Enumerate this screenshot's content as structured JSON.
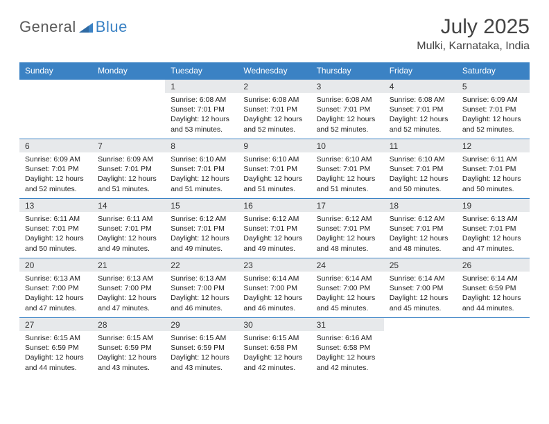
{
  "brand": {
    "word1": "General",
    "word2": "Blue"
  },
  "title": "July 2025",
  "location": "Mulki, Karnataka, India",
  "colors": {
    "header_bg": "#3b82c4",
    "header_text": "#ffffff",
    "daynum_bg": "#e7e9eb",
    "rule": "#3b82c4",
    "logo_gray": "#5a5a5a",
    "logo_blue": "#3b82c4"
  },
  "fonts": {
    "month_title_size": 30,
    "location_size": 16,
    "weekday_size": 12,
    "daynum_size": 12,
    "body_size": 10.5
  },
  "weekdays": [
    "Sunday",
    "Monday",
    "Tuesday",
    "Wednesday",
    "Thursday",
    "Friday",
    "Saturday"
  ],
  "weeks": [
    [
      {
        "empty": true
      },
      {
        "empty": true
      },
      {
        "n": "1",
        "sunrise": "Sunrise: 6:08 AM",
        "sunset": "Sunset: 7:01 PM",
        "daylight": "Daylight: 12 hours and 53 minutes."
      },
      {
        "n": "2",
        "sunrise": "Sunrise: 6:08 AM",
        "sunset": "Sunset: 7:01 PM",
        "daylight": "Daylight: 12 hours and 52 minutes."
      },
      {
        "n": "3",
        "sunrise": "Sunrise: 6:08 AM",
        "sunset": "Sunset: 7:01 PM",
        "daylight": "Daylight: 12 hours and 52 minutes."
      },
      {
        "n": "4",
        "sunrise": "Sunrise: 6:08 AM",
        "sunset": "Sunset: 7:01 PM",
        "daylight": "Daylight: 12 hours and 52 minutes."
      },
      {
        "n": "5",
        "sunrise": "Sunrise: 6:09 AM",
        "sunset": "Sunset: 7:01 PM",
        "daylight": "Daylight: 12 hours and 52 minutes."
      }
    ],
    [
      {
        "n": "6",
        "sunrise": "Sunrise: 6:09 AM",
        "sunset": "Sunset: 7:01 PM",
        "daylight": "Daylight: 12 hours and 52 minutes."
      },
      {
        "n": "7",
        "sunrise": "Sunrise: 6:09 AM",
        "sunset": "Sunset: 7:01 PM",
        "daylight": "Daylight: 12 hours and 51 minutes."
      },
      {
        "n": "8",
        "sunrise": "Sunrise: 6:10 AM",
        "sunset": "Sunset: 7:01 PM",
        "daylight": "Daylight: 12 hours and 51 minutes."
      },
      {
        "n": "9",
        "sunrise": "Sunrise: 6:10 AM",
        "sunset": "Sunset: 7:01 PM",
        "daylight": "Daylight: 12 hours and 51 minutes."
      },
      {
        "n": "10",
        "sunrise": "Sunrise: 6:10 AM",
        "sunset": "Sunset: 7:01 PM",
        "daylight": "Daylight: 12 hours and 51 minutes."
      },
      {
        "n": "11",
        "sunrise": "Sunrise: 6:10 AM",
        "sunset": "Sunset: 7:01 PM",
        "daylight": "Daylight: 12 hours and 50 minutes."
      },
      {
        "n": "12",
        "sunrise": "Sunrise: 6:11 AM",
        "sunset": "Sunset: 7:01 PM",
        "daylight": "Daylight: 12 hours and 50 minutes."
      }
    ],
    [
      {
        "n": "13",
        "sunrise": "Sunrise: 6:11 AM",
        "sunset": "Sunset: 7:01 PM",
        "daylight": "Daylight: 12 hours and 50 minutes."
      },
      {
        "n": "14",
        "sunrise": "Sunrise: 6:11 AM",
        "sunset": "Sunset: 7:01 PM",
        "daylight": "Daylight: 12 hours and 49 minutes."
      },
      {
        "n": "15",
        "sunrise": "Sunrise: 6:12 AM",
        "sunset": "Sunset: 7:01 PM",
        "daylight": "Daylight: 12 hours and 49 minutes."
      },
      {
        "n": "16",
        "sunrise": "Sunrise: 6:12 AM",
        "sunset": "Sunset: 7:01 PM",
        "daylight": "Daylight: 12 hours and 49 minutes."
      },
      {
        "n": "17",
        "sunrise": "Sunrise: 6:12 AM",
        "sunset": "Sunset: 7:01 PM",
        "daylight": "Daylight: 12 hours and 48 minutes."
      },
      {
        "n": "18",
        "sunrise": "Sunrise: 6:12 AM",
        "sunset": "Sunset: 7:01 PM",
        "daylight": "Daylight: 12 hours and 48 minutes."
      },
      {
        "n": "19",
        "sunrise": "Sunrise: 6:13 AM",
        "sunset": "Sunset: 7:01 PM",
        "daylight": "Daylight: 12 hours and 47 minutes."
      }
    ],
    [
      {
        "n": "20",
        "sunrise": "Sunrise: 6:13 AM",
        "sunset": "Sunset: 7:00 PM",
        "daylight": "Daylight: 12 hours and 47 minutes."
      },
      {
        "n": "21",
        "sunrise": "Sunrise: 6:13 AM",
        "sunset": "Sunset: 7:00 PM",
        "daylight": "Daylight: 12 hours and 47 minutes."
      },
      {
        "n": "22",
        "sunrise": "Sunrise: 6:13 AM",
        "sunset": "Sunset: 7:00 PM",
        "daylight": "Daylight: 12 hours and 46 minutes."
      },
      {
        "n": "23",
        "sunrise": "Sunrise: 6:14 AM",
        "sunset": "Sunset: 7:00 PM",
        "daylight": "Daylight: 12 hours and 46 minutes."
      },
      {
        "n": "24",
        "sunrise": "Sunrise: 6:14 AM",
        "sunset": "Sunset: 7:00 PM",
        "daylight": "Daylight: 12 hours and 45 minutes."
      },
      {
        "n": "25",
        "sunrise": "Sunrise: 6:14 AM",
        "sunset": "Sunset: 7:00 PM",
        "daylight": "Daylight: 12 hours and 45 minutes."
      },
      {
        "n": "26",
        "sunrise": "Sunrise: 6:14 AM",
        "sunset": "Sunset: 6:59 PM",
        "daylight": "Daylight: 12 hours and 44 minutes."
      }
    ],
    [
      {
        "n": "27",
        "sunrise": "Sunrise: 6:15 AM",
        "sunset": "Sunset: 6:59 PM",
        "daylight": "Daylight: 12 hours and 44 minutes."
      },
      {
        "n": "28",
        "sunrise": "Sunrise: 6:15 AM",
        "sunset": "Sunset: 6:59 PM",
        "daylight": "Daylight: 12 hours and 43 minutes."
      },
      {
        "n": "29",
        "sunrise": "Sunrise: 6:15 AM",
        "sunset": "Sunset: 6:59 PM",
        "daylight": "Daylight: 12 hours and 43 minutes."
      },
      {
        "n": "30",
        "sunrise": "Sunrise: 6:15 AM",
        "sunset": "Sunset: 6:58 PM",
        "daylight": "Daylight: 12 hours and 42 minutes."
      },
      {
        "n": "31",
        "sunrise": "Sunrise: 6:16 AM",
        "sunset": "Sunset: 6:58 PM",
        "daylight": "Daylight: 12 hours and 42 minutes."
      },
      {
        "empty": true
      },
      {
        "empty": true
      }
    ]
  ]
}
